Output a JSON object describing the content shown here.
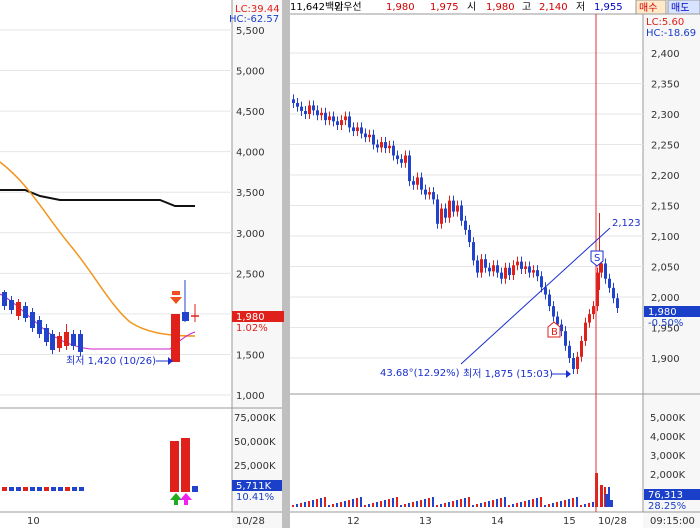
{
  "left": {
    "lc": "LC:39.44",
    "hc": "HC:-62.57",
    "y_ticks": [
      "5,500",
      "5,000",
      "4,500",
      "4,000",
      "3,500",
      "3,000",
      "2,500",
      "2,000",
      "1,500",
      "1,000"
    ],
    "price_badge": "1,980",
    "pct_badge": "1.02%",
    "min_label": "최저 1,420 (10/26)",
    "vol_ticks": [
      "75,000K",
      "50,000K",
      "25,000K"
    ],
    "vol_badge": "5,711K",
    "vol_pct": "10.41%",
    "x_labels": [
      "10",
      "10/28"
    ]
  },
  "right": {
    "header": [
      {
        "text": "11,642백만",
        "color": "#000000"
      },
      {
        "text": "외우선",
        "color": "#000000"
      },
      {
        "text": "1,980",
        "color": "#d00000"
      },
      {
        "text": "1,975",
        "color": "#d00000"
      },
      {
        "text": "시",
        "color": "#000000"
      },
      {
        "text": "1,980",
        "color": "#d00000"
      },
      {
        "text": "고",
        "color": "#000000"
      },
      {
        "text": "2,140",
        "color": "#d00000"
      },
      {
        "text": "저",
        "color": "#000000"
      },
      {
        "text": "1,955",
        "color": "#0000c0"
      }
    ],
    "buy_button": "매수",
    "sell_button": "매도",
    "lc": "LC:5.60",
    "hc": "HC:-18.69",
    "y_ticks": [
      "2,400",
      "2,350",
      "2,300",
      "2,250",
      "2,200",
      "2,150",
      "2,100",
      "2,050",
      "2,000",
      "1,950",
      "1,900"
    ],
    "price_badge": "1,980",
    "pct_badge": "-0.50%",
    "trend_label": "2,123",
    "pct_label": "43.68°(12.92%)",
    "min_label": "최저 1,875 (15:03)",
    "sell_marker": "S",
    "buy_marker": "B",
    "vol_ticks": [
      "5,000K",
      "4,000K",
      "3,000K",
      "2,000K",
      "1,000K"
    ],
    "vol_badge": "76,313",
    "vol_pct": "28.25%",
    "x_labels": [
      "12",
      "13",
      "14",
      "15",
      "10/28"
    ],
    "time_label": "09:15:00"
  },
  "colors": {
    "up": "#e0201b",
    "down": "#2244cc",
    "ma_orange": "#f0961e",
    "ma_black": "#111111",
    "ma_magenta": "#d020d0",
    "badge_red": "#e0201b",
    "badge_blue": "#1a3fc8",
    "grid": "#e6e6e6"
  },
  "chart_data": [
    {
      "type": "line",
      "title": "",
      "series": [],
      "y_axis": {
        "min": 1000,
        "max": 5500
      },
      "annotations": [
        "최저 1,420 (10/26)"
      ]
    },
    {
      "type": "line",
      "title": "",
      "series": [],
      "y_axis": {
        "min": 1900,
        "max": 2400
      },
      "annotations": [
        "2,123",
        "43.68°(12.92%)",
        "최저 1,875 (15:03)"
      ]
    }
  ]
}
